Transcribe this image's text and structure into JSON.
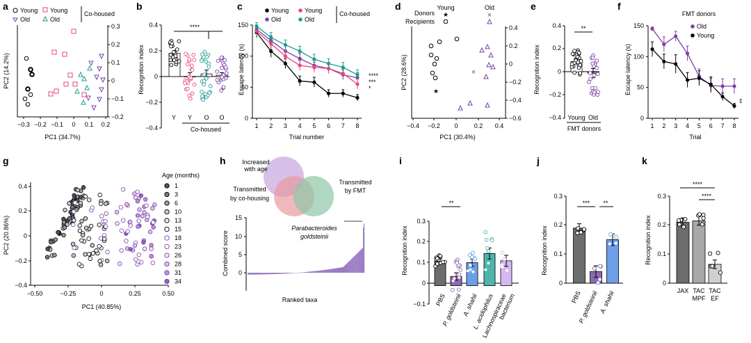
{
  "colors": {
    "young": "#000000",
    "old": "#7B3FA8",
    "young_cohoused": "#E8457A",
    "old_cohoused": "#1A9C94",
    "bar_dark": "#6d6d6d",
    "bar_purple": "#8C6BB1",
    "bar_blue": "#6C9FE8",
    "bar_teal": "#4FB3AE",
    "bar_lilac": "#D6B8F0",
    "bar_light": "#d0d0d0",
    "venn_age": "#C6A5DE",
    "venn_cohousing": "#E89AA1",
    "venn_fmt": "#8EC6A6",
    "hist": "#9B7BC2"
  },
  "panels": {
    "a": {
      "label": "a",
      "legend": {
        "young": "Young",
        "old": "Old",
        "young_ch": "Young",
        "old_ch": "Old",
        "group": "Co-housed"
      },
      "xlabel": "PC1 (34.7%)",
      "ylabel": "PC2 (14.2%)",
      "xticks": [
        "−0.3",
        "−0.2",
        "−0.1",
        "0",
        "0.1",
        "0.2"
      ],
      "yticks": [
        "0.3",
        "0.2",
        "0.1",
        "0",
        "−0.1",
        "−0.2"
      ]
    },
    "b": {
      "label": "b",
      "ylabel": "Recognition index",
      "yticks": [
        "0.4",
        "0.2",
        "0",
        "−0.2",
        "−0.4"
      ],
      "categories": [
        "Y",
        "Y",
        "O",
        "O"
      ],
      "group_label": "Co-housed",
      "sig": "****"
    },
    "c": {
      "label": "c",
      "xlabel": "Trial number",
      "ylabel": "Escape latency (s)",
      "yticks": [
        "150",
        "100",
        "50",
        "0"
      ],
      "xticks": [
        "1",
        "2",
        "3",
        "4",
        "5",
        "6",
        "7",
        "8"
      ],
      "legend": {
        "young": "Young",
        "old": "Old",
        "young_ch": "Young",
        "old_ch": "Old",
        "group": "Co-housed"
      },
      "sig": [
        "****",
        "***",
        "*"
      ]
    },
    "d": {
      "label": "d",
      "xlabel": "PC1 (30.4%)",
      "ylabel": "PC2 (28.6%)",
      "xticks": [
        "−0.4",
        "−0.2",
        "0",
        "0.2",
        "0.4"
      ],
      "yticks": [
        "0.4",
        "0.2",
        "0",
        "−0.2",
        "−0.4",
        "−0.6"
      ],
      "legend": {
        "young": "Young",
        "old": "Old",
        "donors": "Donors",
        "recipients": "Recipients"
      }
    },
    "e": {
      "label": "e",
      "ylabel": "Recognition index",
      "yticks": [
        "0.4",
        "0.2",
        "0",
        "−0.2",
        "−0.4"
      ],
      "categories": [
        "Young",
        "Old"
      ],
      "group_label": "FMT donors",
      "sig": "**"
    },
    "f": {
      "label": "f",
      "xlabel": "Trial",
      "ylabel": "Escape latency (s)",
      "yticks": [
        "150",
        "100",
        "50",
        "0"
      ],
      "xticks": [
        "1",
        "2",
        "3",
        "4",
        "5",
        "6",
        "7",
        "8"
      ],
      "legend_title": "FMT donors",
      "legend": {
        "old": "Old",
        "young": "Young"
      },
      "sig": "**"
    },
    "g": {
      "label": "g",
      "xlabel": "PC1 (40.85%)",
      "ylabel": "PC2 (20.86%)",
      "xticks": [
        "−0.50",
        "−0.25",
        "0",
        "0.25",
        "0.50"
      ],
      "yticks": [
        "0.4",
        "0.2",
        "0",
        "−0.2",
        "−0.4"
      ],
      "legend_title": "Age (months)",
      "ages": [
        "1",
        "3",
        "6",
        "10",
        "13",
        "15",
        "18",
        "23",
        "26",
        "28",
        "31",
        "34"
      ]
    },
    "h": {
      "label": "h",
      "venn": {
        "age": "Increased with age",
        "age_l1": "Increased",
        "age_l2": "with age",
        "cohousing_l1": "Transmitted",
        "cohousing_l2": "by co-housing",
        "fmt_l1": "Transmitted",
        "fmt_l2": "by FMT"
      },
      "ylabel": "Combined score",
      "xlabel": "Ranked taxa",
      "yticks": [
        "15",
        "10",
        "5",
        "0"
      ],
      "annotation_l1": "Parabacteroides",
      "annotation_l2": "goldsteinii"
    },
    "i": {
      "label": "i",
      "ylabel": "Recognition index",
      "yticks": [
        "0.3",
        "0.2",
        "0.1",
        "0",
        "−0.1"
      ],
      "categories": [
        "PBS",
        "P. goldsteinii",
        "A. shahii",
        "L. acidophilus",
        "Lachnospiraceae",
        "bacterium"
      ],
      "sig": "**"
    },
    "j": {
      "label": "j",
      "ylabel": "Recognition index",
      "yticks": [
        "0.3",
        "0.2",
        "0.1",
        "0"
      ],
      "categories": [
        "PBS",
        "P. goldsteinii",
        "A. shahii"
      ],
      "sig": [
        "***",
        "**"
      ]
    },
    "k": {
      "label": "k",
      "ylabel": "Recognition index",
      "yticks": [
        "0.3",
        "0.2",
        "0.1",
        "0"
      ],
      "categories": [
        "JAX",
        "TAC",
        "MPF",
        "TAC",
        "EF"
      ],
      "sig": [
        "****",
        "****"
      ]
    }
  },
  "chart_data": [
    {
      "panel": "c",
      "type": "line",
      "x": [
        1,
        2,
        3,
        4,
        5,
        6,
        7,
        8
      ],
      "series": [
        {
          "name": "Young",
          "values": [
            138,
            108,
            88,
            60,
            58,
            40,
            40,
            33
          ],
          "sem": [
            8,
            10,
            8,
            8,
            8,
            6,
            6,
            5
          ]
        },
        {
          "name": "Old",
          "values": [
            143,
            125,
            108,
            96,
            85,
            80,
            70,
            65
          ],
          "sem": [
            7,
            8,
            8,
            8,
            8,
            8,
            8,
            8
          ]
        },
        {
          "name": "Young",
          "values": [
            140,
            120,
            100,
            85,
            82,
            80,
            72,
            55
          ],
          "sem": [
            7,
            8,
            8,
            8,
            8,
            8,
            8,
            8
          ]
        },
        {
          "name": "Old",
          "values": [
            148,
            130,
            118,
            108,
            95,
            88,
            82,
            70
          ],
          "sem": [
            6,
            8,
            8,
            8,
            8,
            8,
            8,
            8
          ]
        }
      ],
      "ylim": [
        0,
        150
      ]
    },
    {
      "panel": "f",
      "type": "line",
      "x": [
        1,
        2,
        3,
        4,
        5,
        6,
        7,
        8
      ],
      "series": [
        {
          "name": "Old",
          "values": [
            145,
            120,
            133,
            105,
            68,
            53,
            52,
            52
          ],
          "sem": [
            3,
            12,
            8,
            12,
            12,
            12,
            12,
            12
          ]
        },
        {
          "name": "Young",
          "values": [
            112,
            92,
            88,
            62,
            65,
            55,
            35,
            20
          ],
          "sem": [
            12,
            12,
            15,
            12,
            12,
            12,
            6,
            4
          ]
        }
      ],
      "ylim": [
        0,
        150
      ]
    },
    {
      "panel": "b",
      "type": "bar",
      "categories": [
        "Y",
        "Y",
        "O",
        "O"
      ],
      "values": [
        0.18,
        0.0,
        0.02,
        0.01
      ],
      "ylim": [
        -0.4,
        0.4
      ]
    },
    {
      "panel": "e",
      "type": "bar",
      "categories": [
        "Young",
        "Old"
      ],
      "values": [
        0.09,
        -0.01
      ],
      "ylim": [
        -0.4,
        0.4
      ]
    },
    {
      "panel": "i",
      "type": "bar",
      "categories": [
        "PBS",
        "P. goldsteinii",
        "A. shahii",
        "L. acidophilus",
        "Lachnospiraceae bacterium"
      ],
      "values": [
        0.133,
        0.05,
        0.125,
        0.175,
        0.135
      ],
      "ylim": [
        -0.1,
        0.35
      ]
    },
    {
      "panel": "j",
      "type": "bar",
      "categories": [
        "PBS",
        "P. goldsteinii",
        "A. shahii"
      ],
      "values": [
        0.19,
        0.04,
        0.15
      ],
      "ylim": [
        0,
        0.3
      ]
    },
    {
      "panel": "k",
      "type": "bar",
      "categories": [
        "JAX",
        "TAC MPF",
        "TAC EF"
      ],
      "values": [
        0.21,
        0.215,
        0.065
      ],
      "ylim": [
        0,
        0.3
      ]
    }
  ]
}
